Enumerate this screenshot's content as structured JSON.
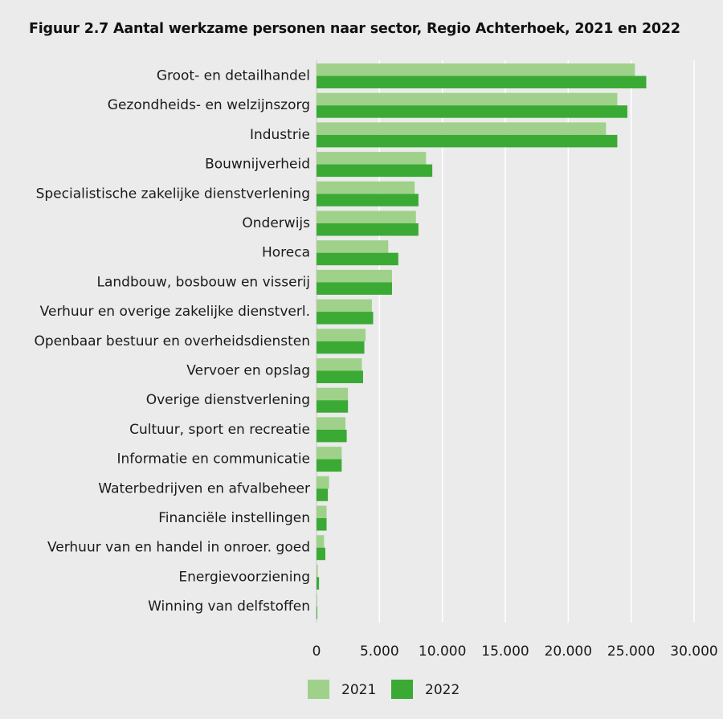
{
  "chart_data": {
    "type": "bar",
    "orientation": "horizontal",
    "title": "Figuur 2.7 Aantal werkzame personen naar sector, Regio Achterhoek, 2021 en 2022",
    "categories": [
      "Groot- en detailhandel",
      "Gezondheids- en welzijnszorg",
      "Industrie",
      "Bouwnijverheid",
      "Specialistische zakelijke dienstverlening",
      "Onderwijs",
      "Horeca",
      "Landbouw, bosbouw en visserij",
      "Verhuur en overige zakelijke dienstverl.",
      "Openbaar bestuur en overheidsdiensten",
      "Vervoer en opslag",
      "Overige dienstverlening",
      "Cultuur, sport en recreatie",
      "Informatie en communicatie",
      "Waterbedrijven en afvalbeheer",
      "Financiële instellingen",
      "Verhuur van en handel in onroer. goed",
      "Energievoorziening",
      "Winning van delfstoffen"
    ],
    "series": [
      {
        "name": "2021",
        "color": "#9fd18a",
        "values": [
          25300,
          23900,
          23000,
          8700,
          7800,
          7900,
          5700,
          6000,
          4400,
          3900,
          3600,
          2500,
          2300,
          2000,
          1000,
          800,
          600,
          100,
          50
        ]
      },
      {
        "name": "2022",
        "color": "#3aaa35",
        "values": [
          26200,
          24700,
          23900,
          9200,
          8100,
          8100,
          6500,
          6000,
          4500,
          3800,
          3700,
          2500,
          2400,
          2000,
          900,
          800,
          700,
          200,
          50
        ]
      }
    ],
    "xlim": [
      0,
      30000
    ],
    "xticks": [
      0,
      5000,
      10000,
      15000,
      20000,
      25000,
      30000
    ],
    "xtick_labels": [
      "0",
      "5.000",
      "10.000",
      "15.000",
      "20.000",
      "25.000",
      "30.000"
    ],
    "grid": "vertical",
    "legend_position": "bottom-center"
  }
}
